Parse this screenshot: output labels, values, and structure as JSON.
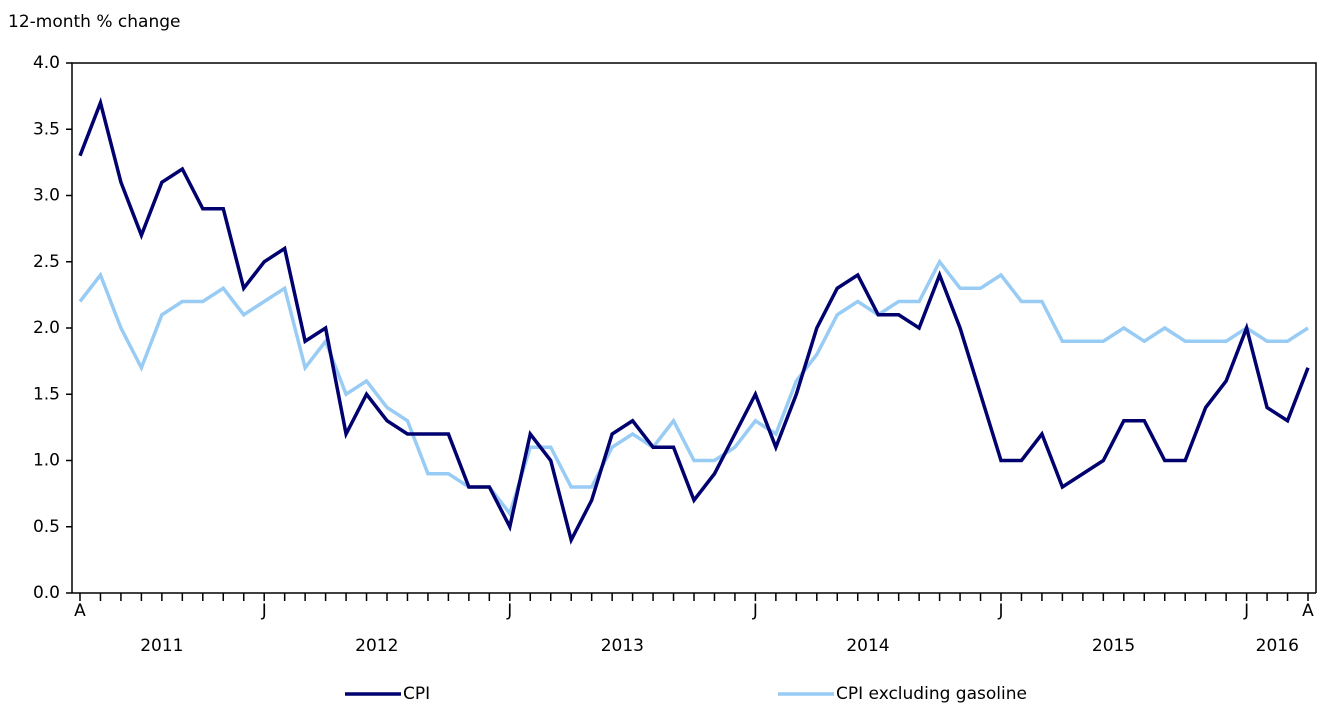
{
  "chart_data": {
    "type": "line",
    "y_axis_label": "12-month % change",
    "categories": [
      "A",
      null,
      null,
      null,
      null,
      null,
      null,
      null,
      null,
      "J",
      null,
      null,
      null,
      null,
      null,
      null,
      null,
      null,
      null,
      null,
      null,
      "J",
      null,
      null,
      null,
      null,
      null,
      null,
      null,
      null,
      null,
      null,
      null,
      "J",
      null,
      null,
      null,
      null,
      null,
      null,
      null,
      null,
      null,
      null,
      null,
      "J",
      null,
      null,
      null,
      null,
      null,
      null,
      null,
      null,
      null,
      null,
      null,
      "J",
      null,
      null,
      "A"
    ],
    "year_labels": [
      "2011",
      "2012",
      "2013",
      "2014",
      "2015",
      "2016"
    ],
    "series": [
      {
        "name": "CPI",
        "color": "#00006e",
        "values": [
          3.3,
          3.7,
          3.1,
          2.7,
          3.1,
          3.2,
          2.9,
          2.9,
          2.3,
          2.5,
          2.6,
          1.9,
          2.0,
          1.2,
          1.5,
          1.3,
          1.2,
          1.2,
          1.2,
          0.8,
          0.8,
          0.5,
          1.2,
          1.0,
          0.4,
          0.7,
          1.2,
          1.3,
          1.1,
          1.1,
          0.7,
          0.9,
          1.2,
          1.5,
          1.1,
          1.5,
          2.0,
          2.3,
          2.4,
          2.1,
          2.1,
          2.0,
          2.4,
          2.0,
          1.5,
          1.0,
          1.0,
          1.2,
          0.8,
          0.9,
          1.0,
          1.3,
          1.3,
          1.0,
          1.0,
          1.4,
          1.6,
          2.0,
          1.4,
          1.3,
          1.7
        ]
      },
      {
        "name": "CPI excluding gasoline",
        "color": "#99ccf5",
        "values": [
          2.2,
          2.4,
          2.0,
          1.7,
          2.1,
          2.2,
          2.2,
          2.3,
          2.1,
          2.2,
          2.3,
          1.7,
          1.9,
          1.5,
          1.6,
          1.4,
          1.3,
          0.9,
          0.9,
          0.8,
          0.8,
          0.6,
          1.1,
          1.1,
          0.8,
          0.8,
          1.1,
          1.2,
          1.1,
          1.3,
          1.0,
          1.0,
          1.1,
          1.3,
          1.2,
          1.6,
          1.8,
          2.1,
          2.2,
          2.1,
          2.2,
          2.2,
          2.5,
          2.3,
          2.3,
          2.4,
          2.2,
          2.2,
          1.9,
          1.9,
          1.9,
          2.0,
          1.9,
          2.0,
          1.9,
          1.9,
          1.9,
          2.0,
          1.9,
          1.9,
          2.0
        ]
      }
    ],
    "ylim": [
      0,
      4
    ],
    "yticks": [
      {
        "value": 0,
        "label": "0.0"
      },
      0.5,
      {
        "value": 1,
        "label": "1.0"
      },
      1.5,
      {
        "value": 2,
        "label": "2.0"
      },
      2.5,
      {
        "value": 3,
        "label": "3.0"
      },
      3.5,
      {
        "value": 4,
        "label": "4.0"
      }
    ],
    "grid": false,
    "legend_position": "bottom"
  }
}
